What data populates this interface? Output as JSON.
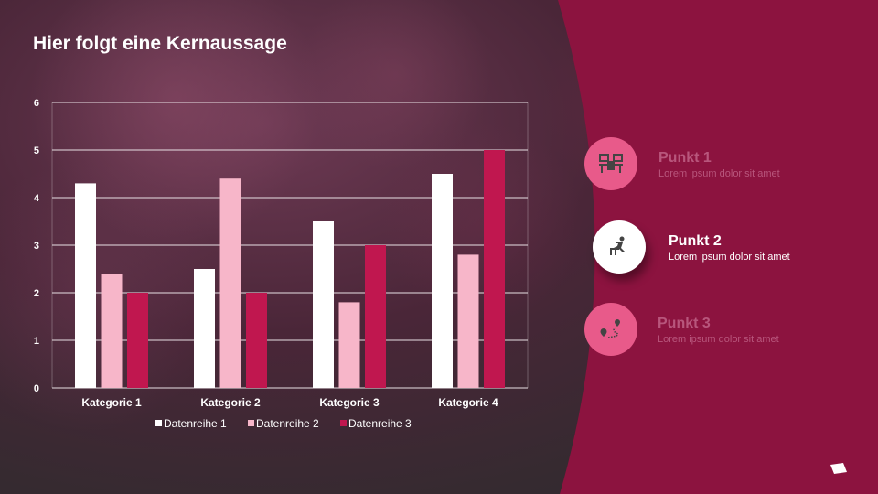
{
  "title": "Hier folgt eine Kernaussage",
  "colors": {
    "panel": "#8c133f",
    "series1": "#ffffff",
    "series2": "#f7b6c9",
    "series3": "#c0174f",
    "circle_inactive": "#e85a8a"
  },
  "chart_data": {
    "type": "bar",
    "categories": [
      "Kategorie 1",
      "Kategorie 2",
      "Kategorie 3",
      "Kategorie 4"
    ],
    "series": [
      {
        "name": "Datenreihe 1",
        "values": [
          4.3,
          2.5,
          3.5,
          4.5
        ]
      },
      {
        "name": "Datenreihe 2",
        "values": [
          2.4,
          4.4,
          1.8,
          2.8
        ]
      },
      {
        "name": "Datenreihe 3",
        "values": [
          2,
          2,
          3,
          5
        ]
      }
    ],
    "yticks": [
      "0",
      "1",
      "2",
      "3",
      "4",
      "5",
      "6"
    ],
    "ylim": [
      0,
      6
    ],
    "grid": true,
    "legend": "bottom"
  },
  "points": [
    {
      "title": "Punkt 1",
      "text": "Lorem ipsum dolor sit amet",
      "icon": "desk-workstation-icon",
      "active": false
    },
    {
      "title": "Punkt 2",
      "text": "Lorem ipsum dolor sit amet",
      "icon": "hurdle-runner-icon",
      "active": true
    },
    {
      "title": "Punkt 3",
      "text": "Lorem ipsum dolor sit amet",
      "icon": "route-map-pin-icon",
      "active": false
    }
  ]
}
